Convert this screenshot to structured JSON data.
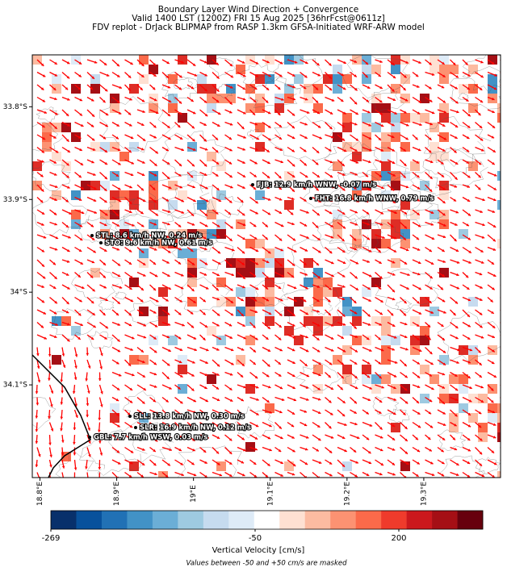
{
  "map": {
    "title": [
      "Boundary Layer Wind Direction + Convergence",
      "Valid 1400 LST (1200Z) FRI 15 Aug 2025 [36hrFcst@0611z]",
      "FDV replot - DrJack BLIPMAP from RASP 1.3km GFSA-Initiated WRF-ARW model"
    ],
    "xlim": [
      18.79,
      19.4
    ],
    "ylim": [
      -34.2,
      -33.744
    ],
    "xticks": [
      {
        "value": 18.8,
        "label": "18.8°E"
      },
      {
        "value": 18.9,
        "label": "18.9°E"
      },
      {
        "value": 19.0,
        "label": "19°E"
      },
      {
        "value": 19.1,
        "label": "19.1°E"
      },
      {
        "value": 19.2,
        "label": "19.2°E"
      },
      {
        "value": 19.3,
        "label": "19.3°E"
      }
    ],
    "yticks": [
      {
        "value": -33.8,
        "label": "33.8°S"
      },
      {
        "value": -33.9,
        "label": "33.9°S"
      },
      {
        "value": -34.0,
        "label": "34°S"
      },
      {
        "value": -34.1,
        "label": "34.1°S"
      }
    ],
    "stations": [
      "FJB: 12.9 km/h WNW, -0.07 m/s",
      "FHT: 16.8 km/h WNW, 0.79 m/s",
      "STL: 8.6 km/h NW, 0.24 m/s",
      "STO: 9.6 km/h NW, 0.61 m/s",
      "SLL: 13.8 km/h NW, 0.30 m/s",
      "SLR: 16.9 km/h NW, 0.12 m/s",
      "GBL: 7.7 km/h WSW, 0.03 m/s"
    ],
    "colorbar": {
      "label": "Vertical Velocity [cm/s]",
      "ticks": [
        -269,
        -50,
        200
      ],
      "colors": [
        "#08306b",
        "#08519c",
        "#2171b5",
        "#4292c6",
        "#6baed6",
        "#9ecae1",
        "#c6dbef",
        "#deebf7",
        "#ffffff",
        "#fee0d2",
        "#fcbba1",
        "#fc9272",
        "#fb6a4a",
        "#ef3b2c",
        "#cb181d",
        "#a50f15",
        "#67000d"
      ]
    },
    "note": "Values between -50 and +50 cm/s are masked"
  }
}
